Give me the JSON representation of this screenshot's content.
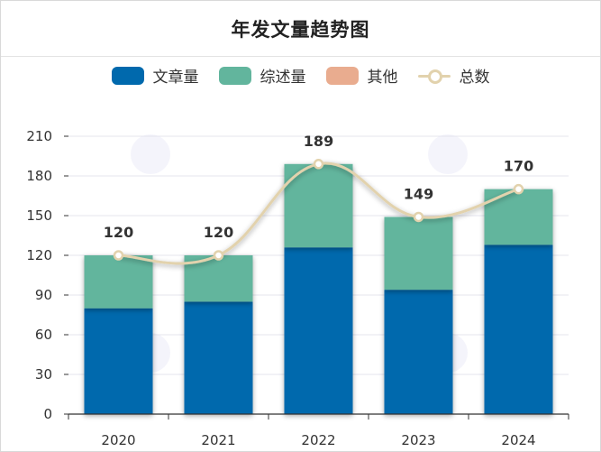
{
  "chart_data": {
    "type": "bar",
    "title": "年发文量趋势图",
    "categories": [
      "2020",
      "2021",
      "2022",
      "2023",
      "2024"
    ],
    "series": [
      {
        "name": "文章量",
        "kind": "bar",
        "stack": true,
        "color": "#0069ad",
        "values": [
          80,
          85,
          126,
          94,
          128
        ]
      },
      {
        "name": "综述量",
        "kind": "bar",
        "stack": true,
        "color": "#62b59d",
        "values": [
          40,
          35,
          63,
          55,
          42
        ]
      },
      {
        "name": "其他",
        "kind": "bar",
        "stack": true,
        "color": "#e9ac8f",
        "values": [
          0,
          0,
          0,
          0,
          0
        ]
      },
      {
        "name": "总数",
        "kind": "line",
        "smooth": true,
        "color": "#e2d2ad",
        "values": [
          120,
          120,
          189,
          149,
          170
        ]
      }
    ],
    "data_labels": [
      "120",
      "120",
      "189",
      "149",
      "170"
    ],
    "ylim": [
      0,
      210
    ],
    "yticks": [
      "0",
      "30",
      "60",
      "90",
      "120",
      "150",
      "180",
      "210"
    ],
    "xlabel": "",
    "ylabel": "",
    "grid": true,
    "legend_position": "top"
  }
}
